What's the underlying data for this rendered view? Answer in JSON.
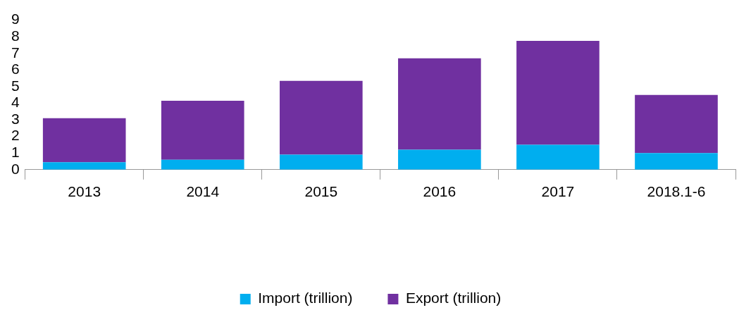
{
  "chart_data": {
    "type": "bar",
    "stacked": true,
    "categories": [
      "2013",
      "2014",
      "2015",
      "2016",
      "2017",
      "2018.1-6"
    ],
    "series": [
      {
        "name": "Import (trillion)",
        "color": "#00aeef",
        "values": [
          0.45,
          0.6,
          0.9,
          1.2,
          1.5,
          1.0
        ]
      },
      {
        "name": "Export (trillion)",
        "color": "#7030a0",
        "values": [
          2.65,
          3.55,
          4.45,
          5.5,
          6.25,
          3.5
        ]
      }
    ],
    "ylim": [
      0,
      9
    ],
    "yticks": [
      0,
      1,
      2,
      3,
      4,
      5,
      6,
      7,
      8,
      9
    ],
    "grid": false,
    "legend": "bottom"
  }
}
